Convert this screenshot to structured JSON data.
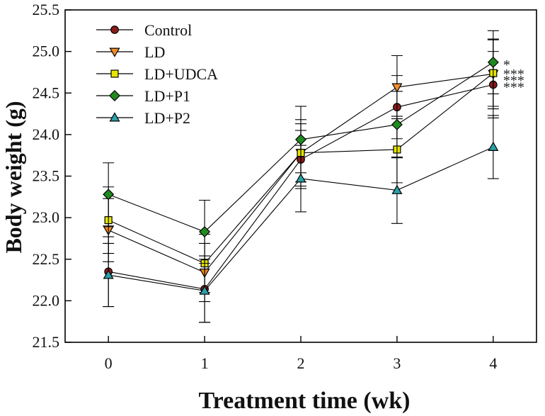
{
  "chart_data": {
    "type": "line",
    "title": "",
    "xlabel": "Treatment time (wk)",
    "ylabel": "Body weight (g)",
    "x": [
      0,
      1,
      2,
      3,
      4
    ],
    "x_tick_labels": [
      "0",
      "1",
      "2",
      "3",
      "4"
    ],
    "xlim": [
      -0.45,
      4.45
    ],
    "ylim": [
      21.5,
      25.5
    ],
    "y_ticks": [
      21.5,
      22.0,
      22.5,
      23.0,
      23.5,
      24.0,
      24.5,
      25.0,
      25.5
    ],
    "y_tick_labels": [
      "21.5",
      "22.0",
      "22.5",
      "23.0",
      "23.5",
      "24.0",
      "24.5",
      "25.0",
      "25.5"
    ],
    "grid": false,
    "legend_position": "top-left",
    "series": [
      {
        "name": "Control",
        "marker": "circle",
        "color": "#8b1a1a",
        "values": [
          22.35,
          22.14,
          23.7,
          24.33,
          24.6
        ],
        "errors": [
          0.42,
          0.4,
          0.35,
          0.38,
          0.4
        ]
      },
      {
        "name": "LD",
        "marker": "triangle-down",
        "color": "#f28c28",
        "values": [
          22.85,
          22.34,
          23.78,
          24.57,
          24.73
        ],
        "errors": [
          0.38,
          0.35,
          0.4,
          0.38,
          0.42
        ]
      },
      {
        "name": "LD+UDCA",
        "marker": "square",
        "color": "#e6e600",
        "values": [
          22.97,
          22.45,
          23.78,
          23.82,
          24.74
        ],
        "errors": [
          0.4,
          0.35,
          0.35,
          0.4,
          0.4
        ]
      },
      {
        "name": "LD+P1",
        "marker": "diamond",
        "color": "#1f8b1f",
        "values": [
          23.28,
          22.83,
          23.94,
          24.12,
          24.87
        ],
        "errors": [
          0.38,
          0.38,
          0.4,
          0.4,
          0.38
        ]
      },
      {
        "name": "LD+P2",
        "marker": "triangle-up",
        "color": "#2aa0a8",
        "values": [
          22.31,
          22.12,
          23.47,
          23.33,
          23.85
        ],
        "errors": [
          0.38,
          0.38,
          0.4,
          0.4,
          0.38
        ]
      }
    ],
    "annotations": [
      {
        "text": "*",
        "x": 4,
        "y": 24.87
      },
      {
        "text": "***",
        "x": 4,
        "y": 24.76
      },
      {
        "text": "***",
        "x": 4,
        "y": 24.68
      },
      {
        "text": "***",
        "x": 4,
        "y": 24.6
      }
    ]
  }
}
